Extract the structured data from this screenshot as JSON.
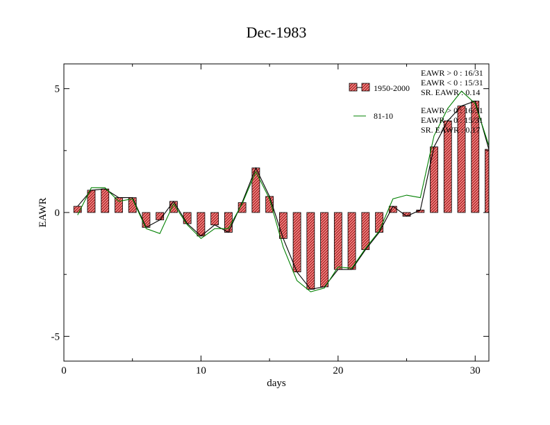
{
  "chart_data": {
    "type": "bar",
    "title": "Dec-1983",
    "xlabel": "days",
    "ylabel": "EAWR",
    "xlim": [
      0,
      31
    ],
    "ylim": [
      -6,
      6
    ],
    "x_ticks": [
      0,
      10,
      20,
      30
    ],
    "y_ticks": [
      -5,
      0,
      5
    ],
    "grid": false,
    "legend_position": "top-right",
    "colors": {
      "bar_fill": "#f08080",
      "bar_hatch": "#8b0000",
      "line_1950": "#000000",
      "line_8110": "#008000",
      "axis": "#000000"
    },
    "series": [
      {
        "name": "1950-2000",
        "render": "bar+line",
        "x": [
          1,
          2,
          3,
          4,
          5,
          6,
          7,
          8,
          9,
          10,
          11,
          12,
          13,
          14,
          15,
          16,
          17,
          18,
          19,
          20,
          21,
          22,
          23,
          24,
          25,
          26,
          27,
          28,
          29,
          30,
          31
        ],
        "values": [
          0.25,
          0.9,
          0.95,
          0.6,
          0.6,
          -0.6,
          -0.3,
          0.45,
          -0.45,
          -0.95,
          -0.5,
          -0.8,
          0.4,
          1.8,
          0.65,
          -1.05,
          -2.4,
          -3.1,
          -3.0,
          -2.3,
          -2.3,
          -1.5,
          -0.8,
          0.25,
          -0.15,
          0.1,
          2.65,
          3.7,
          4.3,
          4.5,
          2.55
        ]
      },
      {
        "name": "81-10",
        "render": "line",
        "x": [
          1,
          2,
          3,
          4,
          5,
          6,
          7,
          8,
          9,
          10,
          11,
          12,
          13,
          14,
          15,
          16,
          17,
          18,
          19,
          20,
          21,
          22,
          23,
          24,
          25,
          26,
          27,
          28,
          29,
          30,
          31
        ],
        "values": [
          -0.1,
          1.0,
          1.0,
          0.45,
          0.55,
          -0.65,
          -0.85,
          0.35,
          -0.5,
          -1.05,
          -0.65,
          -0.65,
          0.35,
          1.65,
          0.55,
          -1.4,
          -2.75,
          -3.2,
          -3.05,
          -2.2,
          -2.25,
          -1.45,
          -0.75,
          0.55,
          0.7,
          0.6,
          3.1,
          4.2,
          4.9,
          4.4,
          2.7
        ]
      }
    ],
    "legend": [
      {
        "label": "1950-2000",
        "marker": "hatched-bar"
      },
      {
        "label": "81-10",
        "marker": "green-line"
      }
    ],
    "annotations": [
      [
        "EAWR > 0 : 16/31",
        "EAWR < 0 : 15/31",
        "SR. EAWR : 0.14"
      ],
      [
        "EAWR > 0 : 16/31",
        "EAWR < 0 : 15/31",
        "SR. EAWR : 0.17"
      ]
    ]
  }
}
